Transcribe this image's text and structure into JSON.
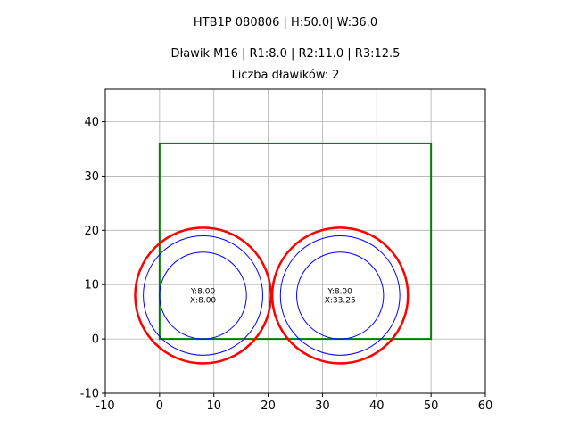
{
  "chart_data": {
    "type": "scatter",
    "title_lines": [
      "HTB1P 080806 | H:50.0| W:36.0",
      "Dławik M16 | R1:8.0 | R2:11.0 | R3:12.5",
      "Liczba dławików: 2"
    ],
    "xlabel": "",
    "ylabel": "",
    "xlim": [
      -10,
      60
    ],
    "ylim": [
      -10,
      46
    ],
    "xticks": [
      -10,
      0,
      10,
      20,
      30,
      40,
      50,
      60
    ],
    "yticks": [
      -10,
      0,
      10,
      20,
      30,
      40
    ],
    "grid": true,
    "rectangle": {
      "x": [
        0,
        50
      ],
      "y": [
        0,
        36
      ],
      "color": "#008000"
    },
    "glands": [
      {
        "x": 8.0,
        "y": 8.0,
        "label_y": "Y:8.00",
        "label_x": "X:8.00"
      },
      {
        "x": 33.25,
        "y": 8.0,
        "label_y": "Y:8.00",
        "label_x": "X:33.25"
      }
    ],
    "radii": {
      "R1": 8.0,
      "R2": 11.0,
      "R3": 12.5
    },
    "colors": {
      "inner": "#0000ff",
      "outer": "#ff0000",
      "grid": "#b0b0b0",
      "frame": "#000000"
    }
  }
}
